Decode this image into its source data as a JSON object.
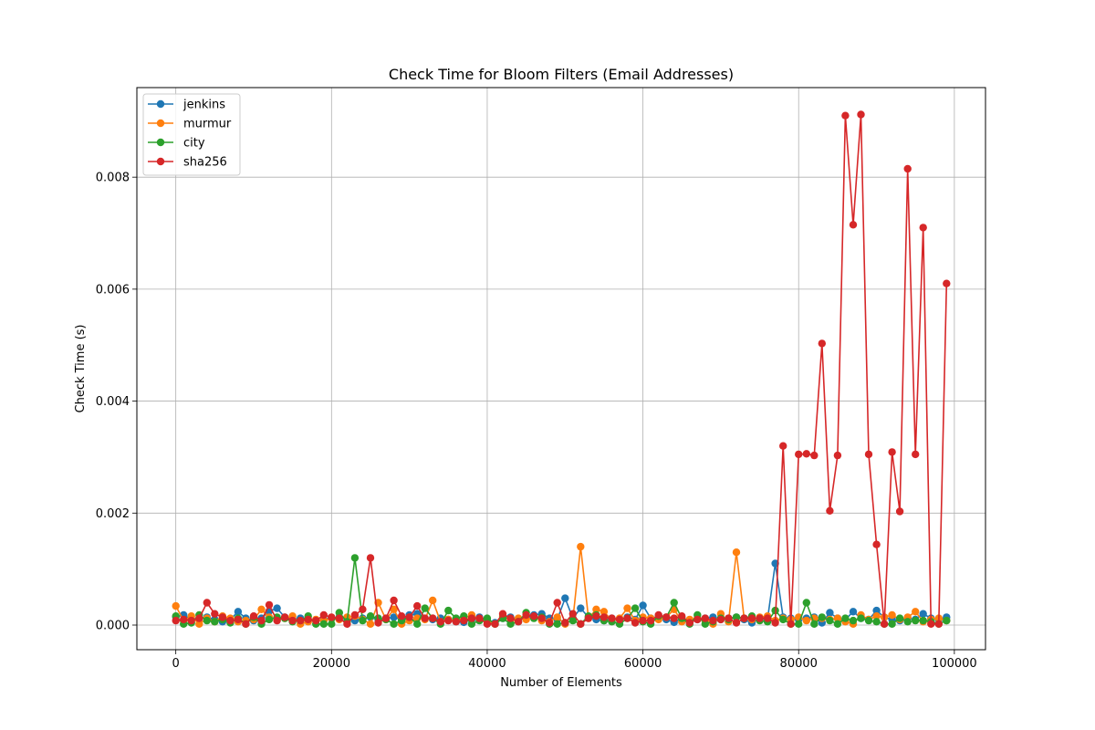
{
  "chart_data": {
    "type": "line",
    "title": "Check Time for Bloom Filters (Email Addresses)",
    "xlabel": "Number of Elements",
    "ylabel": "Check Time (s)",
    "xlim": [
      -5000,
      104000
    ],
    "ylim": [
      -0.00044,
      0.0096
    ],
    "xticks": [
      0,
      20000,
      40000,
      60000,
      80000,
      100000
    ],
    "xtick_labels": [
      "0",
      "20000",
      "40000",
      "60000",
      "80000",
      "100000"
    ],
    "yticks": [
      0,
      0.002,
      0.004,
      0.006,
      0.008
    ],
    "ytick_labels": [
      "0.000",
      "0.002",
      "0.004",
      "0.006",
      "0.008"
    ],
    "grid": true,
    "legend_position": "top-left",
    "x": [
      0,
      1000,
      2000,
      3000,
      4000,
      5000,
      6000,
      7000,
      8000,
      9000,
      10000,
      11000,
      12000,
      13000,
      14000,
      15000,
      16000,
      17000,
      18000,
      19000,
      20000,
      21000,
      22000,
      23000,
      24000,
      25000,
      26000,
      27000,
      28000,
      29000,
      30000,
      31000,
      32000,
      33000,
      34000,
      35000,
      36000,
      37000,
      38000,
      39000,
      40000,
      41000,
      42000,
      43000,
      44000,
      45000,
      46000,
      47000,
      48000,
      49000,
      50000,
      51000,
      52000,
      53000,
      54000,
      55000,
      56000,
      57000,
      58000,
      59000,
      60000,
      61000,
      62000,
      63000,
      64000,
      65000,
      66000,
      67000,
      68000,
      69000,
      70000,
      71000,
      72000,
      73000,
      74000,
      75000,
      76000,
      77000,
      78000,
      79000,
      80000,
      81000,
      82000,
      83000,
      84000,
      85000,
      86000,
      87000,
      88000,
      89000,
      90000,
      91000,
      92000,
      93000,
      94000,
      95000,
      96000,
      97000,
      98000,
      99000
    ],
    "series": [
      {
        "name": "jenkins",
        "color": "#1f77b4",
        "values": [
          0.00015,
          0.00018,
          0.0001,
          0.00012,
          0.00014,
          0.0001,
          6e-05,
          0.0001,
          0.00024,
          0.00012,
          8e-05,
          0.00012,
          0.00025,
          0.0003,
          0.00014,
          0.0001,
          0.00012,
          0.0001,
          8e-05,
          0.0001,
          0.00012,
          0.00014,
          0.0001,
          8e-05,
          0.00012,
          0.00014,
          0.0001,
          0.00012,
          0.00014,
          0.0001,
          0.00018,
          0.0002,
          0.00012,
          0.0001,
          0.00012,
          0.0001,
          6e-05,
          5e-05,
          0.0001,
          0.00014,
          0.0001,
          4e-05,
          0.00012,
          0.00014,
          0.0001,
          0.00012,
          0.00018,
          0.0002,
          0.00012,
          0.0001,
          0.00048,
          0.00012,
          0.0003,
          0.00014,
          0.0001,
          8e-05,
          0.00012,
          0.0001,
          0.00014,
          0.0001,
          0.00035,
          0.00012,
          0.00014,
          0.0001,
          5e-05,
          0.00012,
          6e-05,
          0.0001,
          0.00012,
          0.00014,
          0.0001,
          0.00012,
          0.00014,
          0.0001,
          4e-05,
          0.00012,
          0.0001,
          0.0011,
          0.00014,
          0.00012,
          0.0001,
          0.00012,
          0.00014,
          4e-05,
          0.00022,
          0.00012,
          0.0001,
          0.00024,
          0.00012,
          0.0001,
          0.00026,
          0.00014,
          0.0001,
          8e-05,
          0.00012,
          0.0001,
          0.0002,
          0.00012,
          0.0001,
          0.00014
        ]
      },
      {
        "name": "murmur",
        "color": "#ff7f0e",
        "values": [
          0.00034,
          8e-05,
          0.00016,
          2e-05,
          0.00012,
          6e-05,
          0.00016,
          0.00012,
          6e-05,
          8e-05,
          0.0001,
          0.00028,
          0.00014,
          0.0001,
          0.00012,
          0.00016,
          2e-05,
          6e-05,
          0.0001,
          8e-05,
          0.00012,
          0.0001,
          0.00014,
          0.00016,
          0.0001,
          2e-05,
          0.0004,
          0.0001,
          0.00028,
          2e-05,
          8e-05,
          0.00012,
          0.0001,
          0.00044,
          6e-05,
          0.0001,
          8e-05,
          0.00012,
          0.00018,
          0.0001,
          6e-05,
          2e-05,
          0.00016,
          8e-05,
          0.00012,
          0.0001,
          0.00014,
          8e-05,
          6e-05,
          0.00014,
          2e-05,
          0.0001,
          0.0014,
          0.00012,
          0.00028,
          0.00024,
          8e-05,
          0.00012,
          0.0003,
          8e-05,
          0.00014,
          0.00012,
          0.0001,
          0.00014,
          0.00028,
          6e-05,
          0.0001,
          0.00012,
          8e-05,
          2e-05,
          0.0002,
          6e-05,
          0.0013,
          0.00012,
          0.0001,
          0.00014,
          0.00016,
          8e-05,
          0.00012,
          0.0001,
          0.00014,
          8e-05,
          0.00012,
          0.00012,
          0.0001,
          0.00012,
          6e-05,
          2e-05,
          0.00018,
          0.0001,
          0.00016,
          0.00014,
          0.00018,
          0.0001,
          0.00014,
          0.00024,
          6e-05,
          0.0001,
          0.00012,
          8e-05
        ]
      },
      {
        "name": "city",
        "color": "#2ca02c",
        "values": [
          0.00016,
          2e-05,
          4e-05,
          0.00018,
          8e-05,
          6e-05,
          0.0001,
          4e-05,
          0.00012,
          2e-05,
          0.00014,
          2e-05,
          0.0001,
          0.00014,
          0.00012,
          6e-05,
          8e-05,
          0.00016,
          2e-05,
          2e-05,
          2e-05,
          0.00022,
          6e-05,
          0.0012,
          8e-05,
          0.00016,
          0.00012,
          0.0001,
          2e-05,
          8e-05,
          0.00014,
          2e-05,
          0.0003,
          0.00012,
          2e-05,
          0.00026,
          0.00012,
          0.00016,
          2e-05,
          8e-05,
          0.00012,
          2e-05,
          0.00012,
          2e-05,
          6e-05,
          0.00022,
          0.00012,
          0.00014,
          2e-05,
          2e-05,
          4e-05,
          8e-05,
          2e-05,
          0.00016,
          0.00018,
          8e-05,
          6e-05,
          2e-05,
          0.00012,
          0.0003,
          6e-05,
          2e-05,
          0.00016,
          0.00014,
          0.0004,
          0.00012,
          2e-05,
          0.00018,
          2e-05,
          6e-05,
          0.00012,
          0.0001,
          0.00014,
          0.00012,
          0.00016,
          8e-05,
          6e-05,
          0.00026,
          0.0001,
          2e-05,
          2e-05,
          0.0004,
          2e-05,
          0.00014,
          8e-05,
          2e-05,
          0.00012,
          8e-05,
          0.00012,
          8e-05,
          6e-05,
          2e-05,
          2e-05,
          0.00012,
          6e-05,
          8e-05,
          8e-05,
          6e-05,
          2e-05,
          8e-05
        ]
      },
      {
        "name": "sha256",
        "color": "#d62728",
        "values": [
          8e-05,
          0.0001,
          8e-05,
          0.00012,
          0.0004,
          0.0002,
          0.00014,
          8e-05,
          0.0001,
          2e-05,
          0.00016,
          8e-05,
          0.00036,
          8e-05,
          0.00014,
          8e-05,
          8e-05,
          0.0001,
          8e-05,
          0.00018,
          0.00014,
          0.00012,
          2e-05,
          0.00018,
          0.00028,
          0.0012,
          4e-05,
          0.00012,
          0.00044,
          0.00016,
          0.00014,
          0.00034,
          0.00012,
          0.00012,
          6e-05,
          8e-05,
          6e-05,
          8e-05,
          0.00012,
          0.00012,
          2e-05,
          2e-05,
          0.0002,
          0.00012,
          6e-05,
          0.00018,
          0.00016,
          0.00012,
          4e-05,
          0.0004,
          4e-05,
          0.0002,
          2e-05,
          0.00012,
          0.00016,
          0.00014,
          0.00012,
          0.0001,
          0.00012,
          4e-05,
          8e-05,
          8e-05,
          0.00018,
          0.00014,
          0.00012,
          0.00016,
          4e-05,
          0.0001,
          0.00012,
          8e-05,
          0.0001,
          0.00012,
          4e-05,
          0.00012,
          0.00012,
          0.00012,
          0.00012,
          4e-05,
          0.0032,
          2e-05,
          0.00305,
          0.00306,
          0.00303,
          0.00503,
          0.00204,
          0.00303,
          0.0091,
          0.00715,
          0.00912,
          0.00305,
          0.00144,
          2e-05,
          0.00309,
          0.00203,
          0.00815,
          0.00305,
          0.0071,
          2e-05,
          2e-05,
          0.0061
        ]
      }
    ]
  }
}
